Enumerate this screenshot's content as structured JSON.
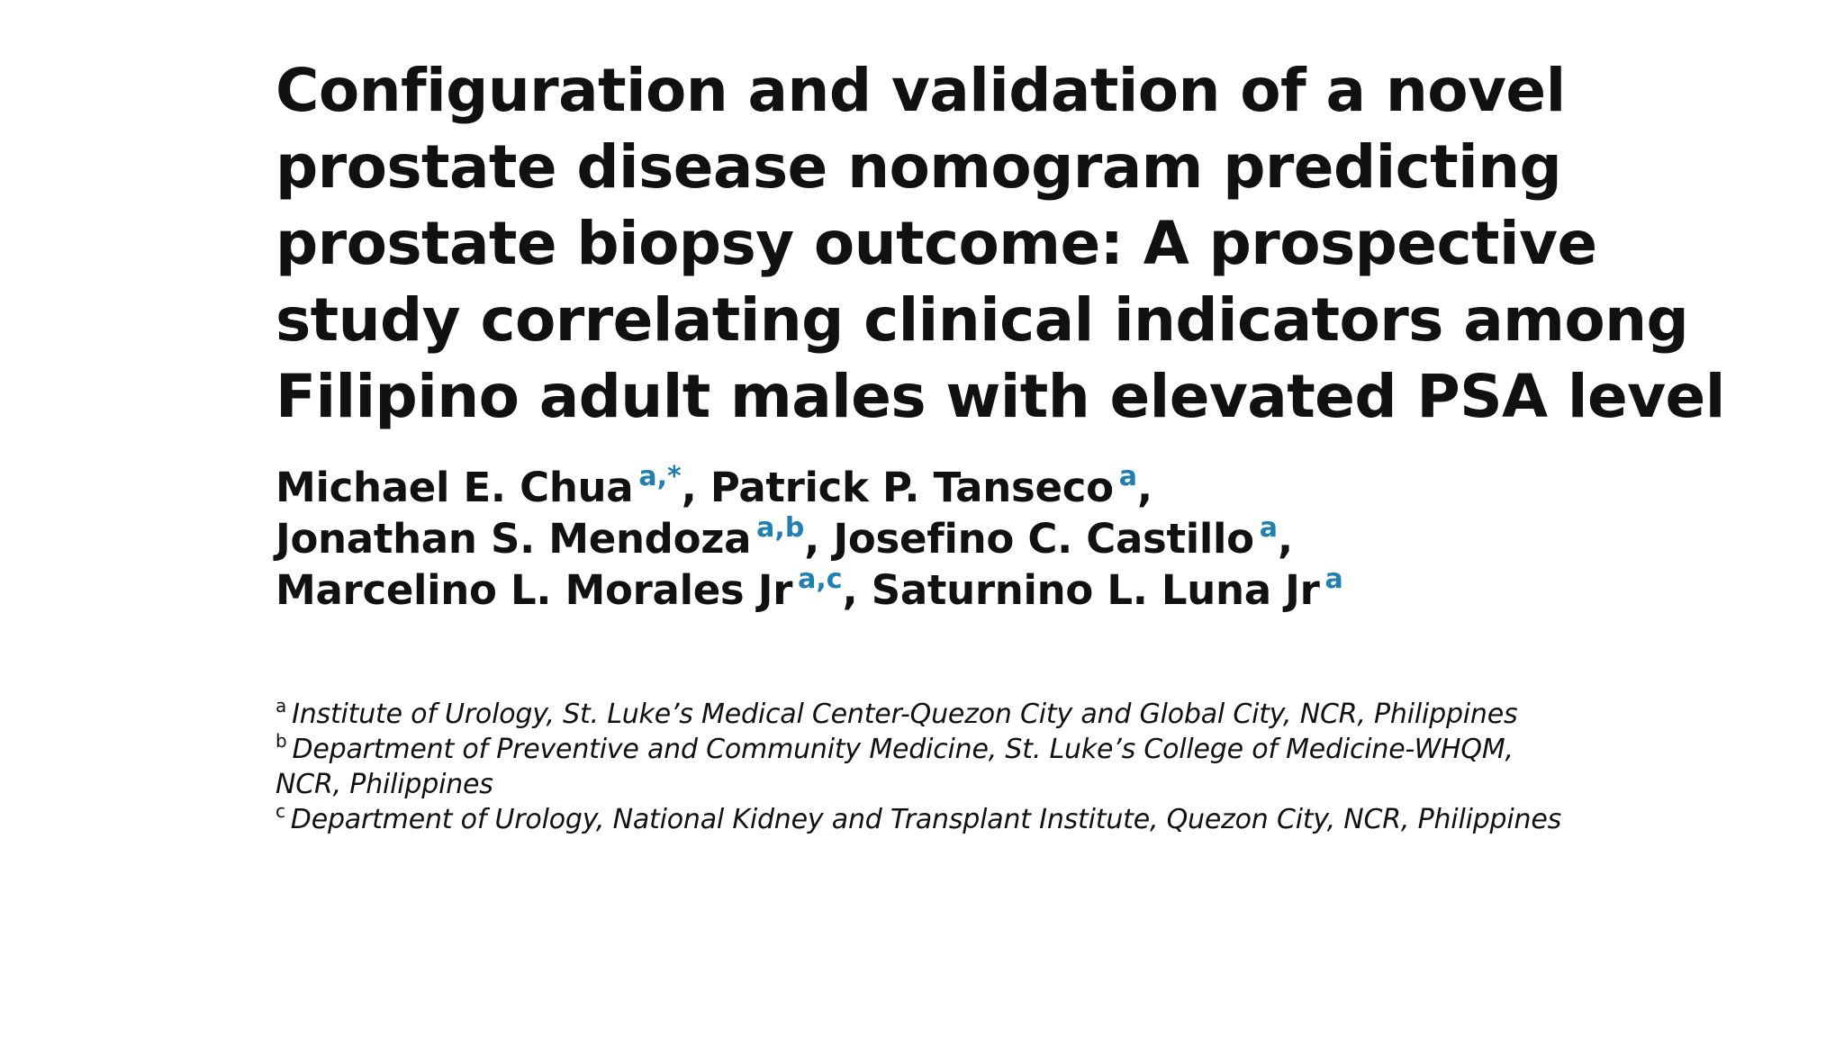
{
  "paper": {
    "title_lines": [
      "Configuration and validation of a novel",
      "prostate disease nomogram predicting",
      "prostate biopsy outcome: A prospective",
      "study correlating clinical indicators among",
      "Filipino adult males with elevated PSA level"
    ],
    "author_lines": [
      [
        {
          "name": "Michael E. Chua",
          "sup": "a,*",
          "sep": ","
        },
        {
          "name": "Patrick P. Tanseco",
          "sup": "a",
          "sep": ","
        }
      ],
      [
        {
          "name": "Jonathan S. Mendoza",
          "sup": "a,b",
          "sep": ","
        },
        {
          "name": "Josefino C. Castillo",
          "sup": "a",
          "sep": ","
        }
      ],
      [
        {
          "name": "Marcelino L. Morales Jr",
          "sup": "a,c",
          "sep": ","
        },
        {
          "name": "Saturnino L. Luna Jr",
          "sup": "a",
          "sep": ""
        }
      ]
    ],
    "affiliations": [
      {
        "mark": "a",
        "text": "Institute of Urology, St. Luke’s Medical Center-Quezon City and Global City, NCR, Philippines"
      },
      {
        "mark": "b",
        "text": "Department of Preventive and Community Medicine, St. Luke’s College of Medicine-WHQM, NCR, Philippines"
      },
      {
        "mark": "c",
        "text": "Department of Urology, National Kidney and Transplant Institute, Quezon City, NCR, Philippines"
      }
    ]
  },
  "colors": {
    "text": "#111111",
    "affiliation_superscript": "#1f7fb0",
    "background": "#ffffff"
  }
}
